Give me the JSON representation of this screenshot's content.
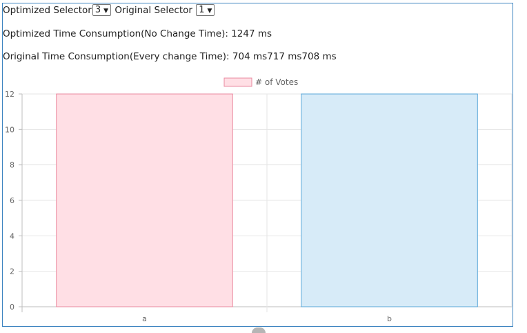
{
  "controls": {
    "optimized_label": "Optimized Selector",
    "optimized_value": "3",
    "original_label": "Original Selector",
    "original_value": "1"
  },
  "stats": {
    "optimized_time": "Optimized Time Consumption(No Change Time): 1247 ms",
    "original_time": "Original Time Consumption(Every change Time): 704 ms717 ms708 ms"
  },
  "chart_data": {
    "type": "bar",
    "categories": [
      "a",
      "b"
    ],
    "series": [
      {
        "name": "# of Votes",
        "values": [
          12,
          12
        ]
      }
    ],
    "bar_colors": {
      "fill": [
        "#ffdfe5",
        "#d7ebf8"
      ],
      "stroke": [
        "#ea8aa0",
        "#5aa7d8"
      ]
    },
    "legend_fill": "#ffdfe5",
    "legend_stroke": "#ea8aa0",
    "ylim": [
      0,
      12
    ],
    "yticks": [
      0,
      2,
      4,
      6,
      8,
      10,
      12
    ],
    "grid": true,
    "legend": "top-center"
  }
}
